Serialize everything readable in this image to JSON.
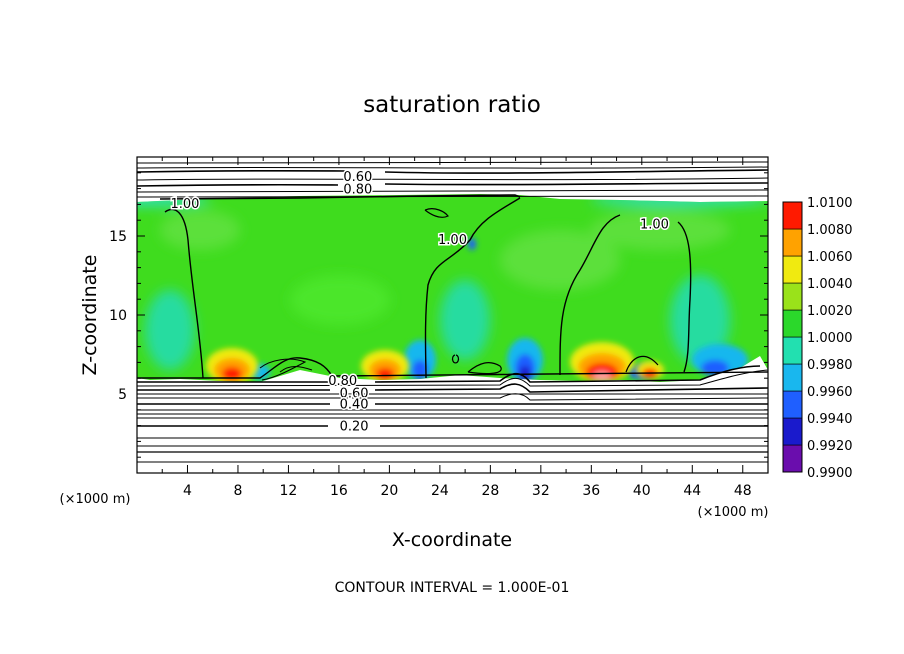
{
  "chart_data": {
    "type": "heatmap",
    "title": "saturation ratio",
    "xlabel": "X-coordinate",
    "ylabel": "Z-coordinate",
    "x_unit": "(×1000 m)",
    "y_unit": "(×1000 m)",
    "xlim": [
      0,
      50
    ],
    "ylim": [
      0,
      20
    ],
    "x_ticks": [
      4,
      8,
      12,
      16,
      20,
      24,
      28,
      32,
      36,
      40,
      44,
      48
    ],
    "y_ticks": [
      5,
      10,
      15
    ],
    "colorbar": {
      "levels": [
        "0.9900",
        "0.9920",
        "0.9940",
        "0.9960",
        "0.9980",
        "1.0000",
        "1.0020",
        "1.0040",
        "1.0060",
        "1.0080",
        "1.0100"
      ],
      "colors": [
        "#6a0dad",
        "#1a1acc",
        "#1f5fff",
        "#19b7ee",
        "#22e0b0",
        "#2bd82b",
        "#9ae21a",
        "#f0ea10",
        "#ffa200",
        "#ff1a00",
        "#ff9a9a"
      ]
    },
    "contour_labels": [
      {
        "text": "0.60",
        "x": 17.5,
        "y": 18.8
      },
      {
        "text": "0.80",
        "x": 17.5,
        "y": 18.0
      },
      {
        "text": "1.00",
        "x": 3.8,
        "y": 17.1
      },
      {
        "text": "1.00",
        "x": 25.0,
        "y": 14.8
      },
      {
        "text": "1.00",
        "x": 41.0,
        "y": 15.8
      },
      {
        "text": "0.80",
        "x": 16.3,
        "y": 5.9
      },
      {
        "text": "0.60",
        "x": 17.2,
        "y": 5.1
      },
      {
        "text": "0.40",
        "x": 17.2,
        "y": 4.4
      },
      {
        "text": "0.20",
        "x": 17.2,
        "y": 3.0
      }
    ],
    "footer": "CONTOUR INTERVAL = 1.000E-01"
  }
}
